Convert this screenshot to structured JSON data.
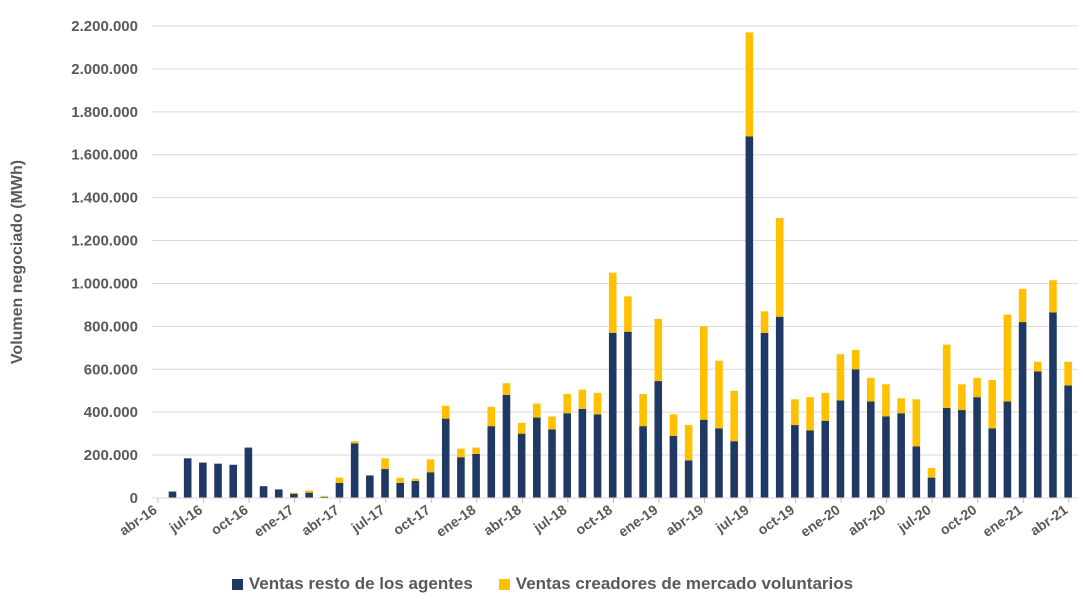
{
  "chart_data": {
    "type": "bar",
    "stacked": true,
    "ylabel": "Volumen negociado (MWh)",
    "ylim": [
      0,
      2200000
    ],
    "y_ticks": [
      "0",
      "200.000",
      "400.000",
      "600.000",
      "800.000",
      "1.000.000",
      "1.200.000",
      "1.400.000",
      "1.600.000",
      "1.800.000",
      "2.000.000",
      "2.200.000"
    ],
    "x_tick_labels": [
      "abr-16",
      "jul-16",
      "oct-16",
      "ene-17",
      "abr-17",
      "jul-17",
      "oct-17",
      "ene-18",
      "abr-18",
      "jul-18",
      "oct-18",
      "ene-19",
      "abr-19",
      "jul-19",
      "oct-19",
      "ene-20",
      "abr-20",
      "jul-20",
      "oct-20",
      "ene-21",
      "abr-21"
    ],
    "grid": true,
    "legend_position": "bottom",
    "series": [
      {
        "name": "Ventas resto de los agentes",
        "color": "#1f3864",
        "values": [
          30000,
          185000,
          165000,
          160000,
          155000,
          235000,
          55000,
          40000,
          20000,
          25000,
          5000,
          70000,
          255000,
          105000,
          135000,
          70000,
          80000,
          120000,
          370000,
          190000,
          205000,
          335000,
          480000,
          300000,
          375000,
          320000,
          395000,
          415000,
          390000,
          770000,
          775000,
          335000,
          545000,
          290000,
          175000,
          365000,
          325000,
          265000,
          1685000,
          770000,
          845000,
          340000,
          315000,
          360000,
          455000,
          600000,
          450000,
          380000,
          395000,
          240000,
          95000,
          420000,
          410000,
          470000,
          325000,
          450000,
          820000,
          590000,
          865000,
          525000
        ]
      },
      {
        "name": "Ventas creadores de mercado voluntarios",
        "color": "#ffc000",
        "values": [
          0,
          0,
          0,
          0,
          0,
          0,
          0,
          0,
          5000,
          10000,
          5000,
          25000,
          10000,
          0,
          50000,
          25000,
          10000,
          60000,
          60000,
          40000,
          30000,
          90000,
          55000,
          50000,
          65000,
          60000,
          90000,
          90000,
          100000,
          280000,
          165000,
          150000,
          290000,
          100000,
          165000,
          435000,
          315000,
          235000,
          485000,
          100000,
          460000,
          120000,
          155000,
          130000,
          215000,
          90000,
          110000,
          150000,
          70000,
          220000,
          45000,
          295000,
          120000,
          90000,
          225000,
          405000,
          155000,
          45000,
          150000,
          110000
        ]
      }
    ]
  }
}
